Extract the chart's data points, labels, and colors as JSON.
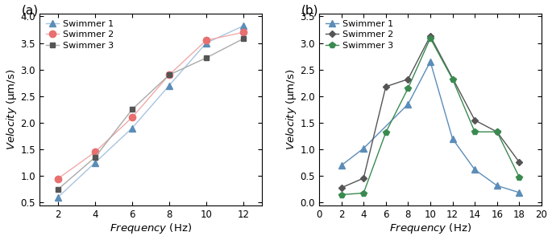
{
  "panel_a": {
    "freq": [
      2,
      4,
      6,
      8,
      10,
      12
    ],
    "swimmer1": [
      0.6,
      1.25,
      1.9,
      2.7,
      3.5,
      3.82
    ],
    "swimmer2": [
      0.95,
      1.45,
      2.1,
      2.9,
      3.55,
      3.7
    ],
    "swimmer3": [
      0.75,
      1.35,
      2.25,
      2.9,
      3.22,
      3.58
    ],
    "color1": "#5B8DB8",
    "color2": "#E87070",
    "color3": "#555555",
    "line_color1": "#A8C4E0",
    "line_color2": "#F0AAAA",
    "line_color3": "#AAAAAA",
    "ylim": [
      0.45,
      4.05
    ],
    "yticks": [
      0.5,
      1.0,
      1.5,
      2.0,
      2.5,
      3.0,
      3.5,
      4.0
    ],
    "xlim": [
      1,
      13
    ],
    "xticks": [
      2,
      4,
      6,
      8,
      10,
      12
    ]
  },
  "panel_b": {
    "freq1": [
      2,
      4,
      8,
      10,
      12,
      14,
      16,
      18
    ],
    "freq2": [
      2,
      4,
      6,
      8,
      10,
      14,
      16,
      18
    ],
    "freq3": [
      2,
      4,
      6,
      8,
      10,
      12,
      14,
      16,
      18
    ],
    "swimmer1": [
      0.7,
      1.02,
      1.85,
      2.65,
      1.2,
      0.62,
      0.32,
      0.19
    ],
    "swimmer2": [
      0.28,
      0.46,
      2.18,
      2.32,
      3.13,
      1.55,
      1.33,
      0.76
    ],
    "swimmer3": [
      0.15,
      0.18,
      1.32,
      2.15,
      3.09,
      2.32,
      1.33,
      1.33,
      0.48
    ],
    "color1": "#5B8DB8",
    "color2": "#555555",
    "color3": "#3A8A50",
    "ylim": [
      -0.05,
      3.55
    ],
    "yticks": [
      0.0,
      0.5,
      1.0,
      1.5,
      2.0,
      2.5,
      3.0,
      3.5
    ],
    "xlim": [
      0,
      20
    ],
    "xticks": [
      0,
      2,
      4,
      6,
      8,
      10,
      12,
      14,
      16,
      18,
      20
    ]
  },
  "ylabel_italic": "Velocity",
  "ylabel_unit": " (μm/s)",
  "xlabel_italic": "Frequency",
  "xlabel_unit": " (Hz)"
}
